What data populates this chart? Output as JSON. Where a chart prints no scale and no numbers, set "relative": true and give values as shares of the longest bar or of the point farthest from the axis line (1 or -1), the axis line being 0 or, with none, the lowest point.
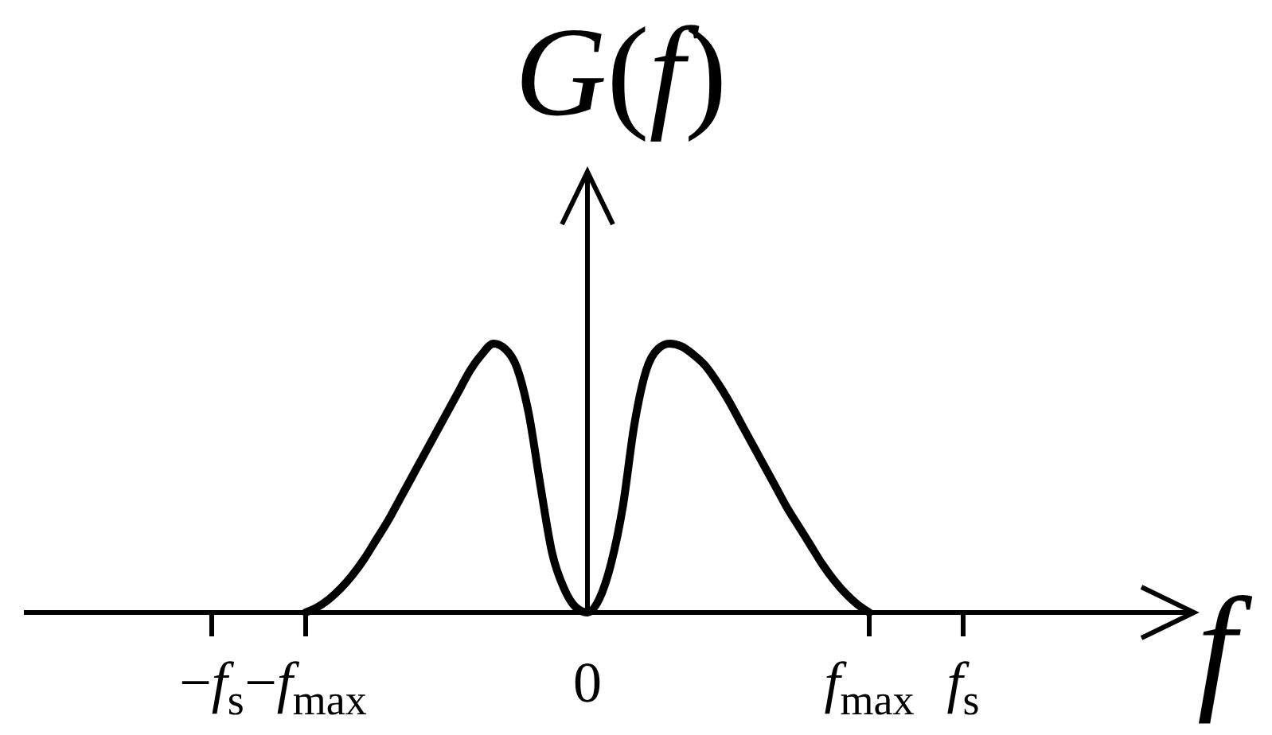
{
  "chart_data": {
    "type": "line",
    "ylabel": "G(f)",
    "xlabel": "f",
    "relative": true,
    "categories": [
      null,
      null,
      null,
      null,
      null,
      null,
      null,
      null,
      null,
      null,
      null,
      null,
      null,
      null,
      null,
      null,
      "−f$_{s}$",
      null,
      null,
      null,
      null,
      null,
      null,
      null,
      "−f$_{max}$",
      null,
      null,
      null,
      null,
      null,
      null,
      null,
      null,
      null,
      null,
      null,
      null,
      null,
      null,
      null,
      null,
      null,
      null,
      null,
      null,
      null,
      null,
      null,
      "0",
      null,
      null,
      null,
      null,
      null,
      null,
      null,
      null,
      null,
      null,
      null,
      null,
      null,
      null,
      null,
      null,
      null,
      null,
      null,
      null,
      null,
      null,
      null,
      "f$_{max}$",
      null,
      null,
      null,
      null,
      null,
      null,
      null,
      "f$_{s}$",
      null,
      null,
      null,
      null,
      null,
      null,
      null,
      null,
      null,
      null,
      null,
      null,
      null,
      null,
      null,
      null
    ],
    "values": [
      null,
      null,
      null,
      null,
      null,
      null,
      null,
      null,
      null,
      null,
      null,
      null,
      null,
      null,
      null,
      null,
      null,
      null,
      null,
      null,
      null,
      null,
      null,
      null,
      0,
      0.02,
      0.05,
      0.09,
      0.14,
      0.2,
      0.27,
      0.34,
      0.42,
      0.5,
      0.58,
      0.66,
      0.74,
      0.82,
      0.9,
      0.96,
      1,
      0.98,
      0.91,
      0.74,
      0.47,
      0.22,
      0.09,
      0.02,
      0,
      0.05,
      0.18,
      0.39,
      0.7,
      0.9,
      0.98,
      1,
      0.99,
      0.96,
      0.92,
      0.86,
      0.79,
      0.71,
      0.63,
      0.55,
      0.47,
      0.39,
      0.32,
      0.25,
      0.18,
      0.12,
      0.07,
      0.03,
      0,
      null,
      null,
      null,
      null,
      null,
      null,
      null,
      null,
      null,
      null,
      null,
      null,
      null,
      null,
      null,
      null,
      null,
      null,
      null,
      null,
      null,
      null,
      null,
      null
    ],
    "color": "#000000",
    "line_style": "solid"
  }
}
